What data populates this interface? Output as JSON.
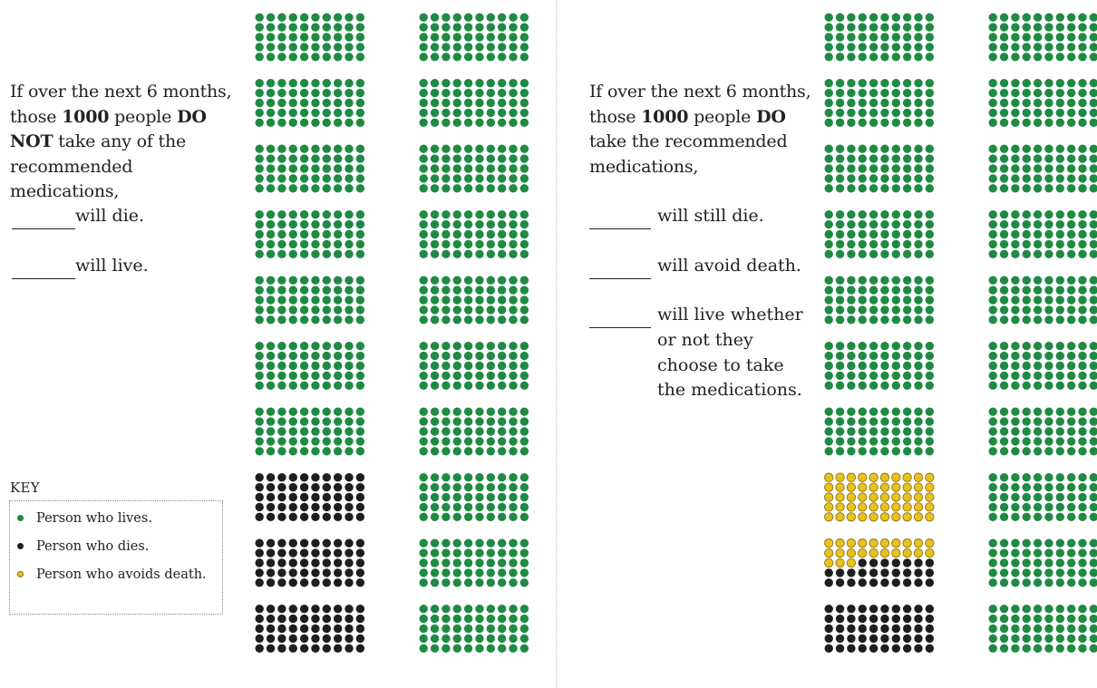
{
  "colors": {
    "lives": "#1f8a43",
    "dies": "#1e1e1e",
    "avoids_death": "#e8c21e",
    "avoids_death_ring": "#8f7210"
  },
  "left_panel": {
    "intro_1": "If over the next 6 months,",
    "intro_2a": "those ",
    "intro_2b": "1000",
    "intro_2c": " people ",
    "intro_2d": "DO",
    "intro_3a": "NOT",
    "intro_3b": " take any of the",
    "intro_4": "recommended medications,",
    "blank_die": "will die.",
    "blank_live": "will live.",
    "key": {
      "title": "KEY",
      "items": [
        {
          "label": "Person who lives.",
          "color_key": "lives"
        },
        {
          "label": "Person who dies.",
          "color_key": "dies"
        },
        {
          "label": "Person who avoids death.",
          "color_key": "avoids_death"
        }
      ]
    }
  },
  "right_panel": {
    "intro_1": "If over the next 6 months,",
    "intro_2a": "those ",
    "intro_2b": "1000",
    "intro_2c": " people ",
    "intro_2d": "DO",
    "intro_3": "take the recommended",
    "intro_4": "medications,",
    "blank_still_die": "will still die.",
    "blank_avoid": "will avoid death.",
    "blank_whether_1": "will live whether",
    "blank_whether_2": "or not they",
    "blank_whether_3": "choose to take",
    "blank_whether_4": "the medications."
  },
  "chart_data": [
    {
      "type": "icon-array",
      "name": "without medication",
      "total": 1000,
      "block_size": 50,
      "blocks_per_column": 10,
      "columns": 2,
      "counts": {
        "lives": 850,
        "dies": 150,
        "avoids_death": 0
      },
      "column_1_blocks": [
        "lives",
        "lives",
        "lives",
        "lives",
        "lives",
        "lives",
        "lives",
        "dies",
        "dies",
        "dies"
      ],
      "column_2_blocks": [
        "lives",
        "lives",
        "lives",
        "lives",
        "lives",
        "lives",
        "lives",
        "lives",
        "lives",
        "lives"
      ]
    },
    {
      "type": "icon-array",
      "name": "with medication",
      "total": 1000,
      "block_size": 50,
      "blocks_per_column": 10,
      "columns": 2,
      "counts": {
        "lives": 850,
        "dies": 77,
        "avoids_death": 73
      },
      "column_1_blocks": [
        "lives",
        "lives",
        "lives",
        "lives",
        "lives",
        "lives",
        "lives",
        "avoids_death",
        {
          "avoids_death": 23,
          "dies": 27
        },
        "dies"
      ],
      "column_2_blocks": [
        "lives",
        "lives",
        "lives",
        "lives",
        "lives",
        "lives",
        "lives",
        "lives",
        "lives",
        "lives"
      ]
    }
  ]
}
